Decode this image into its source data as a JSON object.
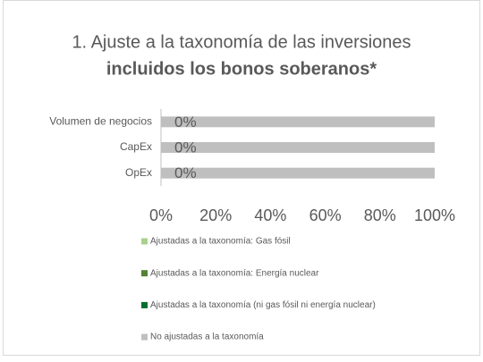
{
  "chart_data": {
    "type": "stacked-bar-horizontal",
    "title": [
      "1. Ajuste a la taxonomía de las inversiones",
      "incluidos los bonos soberanos*"
    ],
    "categories": [
      "Volumen de negocios",
      "CapEx",
      "OpEx"
    ],
    "series": [
      {
        "name": "Ajustadas a la taxonomía: Gas fósil",
        "color": "#a9d18e",
        "values": [
          0,
          0,
          0
        ],
        "value_labels": [
          "0%",
          "0%",
          "0%"
        ]
      },
      {
        "name": "Ajustadas a la taxonomía: Energía nuclear",
        "color": "#548235",
        "values": [
          0,
          0,
          0
        ]
      },
      {
        "name": "Ajustadas a la taxonomía (ni gas fósil ni energía nuclear)",
        "color": "#00702e",
        "values": [
          0,
          0,
          0
        ]
      },
      {
        "name": "No ajustadas a la taxonomía",
        "color": "#bfbfbf",
        "values": [
          100,
          100,
          100
        ]
      }
    ],
    "xlim": [
      0,
      100
    ],
    "xticks": [
      {
        "value": 0,
        "label": "0%"
      },
      {
        "value": 20,
        "label": "20%"
      },
      {
        "value": 40,
        "label": "40%"
      },
      {
        "value": 60,
        "label": "60%"
      },
      {
        "value": 80,
        "label": "80%"
      },
      {
        "value": 100,
        "label": "100%"
      }
    ],
    "legend": "bottom"
  }
}
